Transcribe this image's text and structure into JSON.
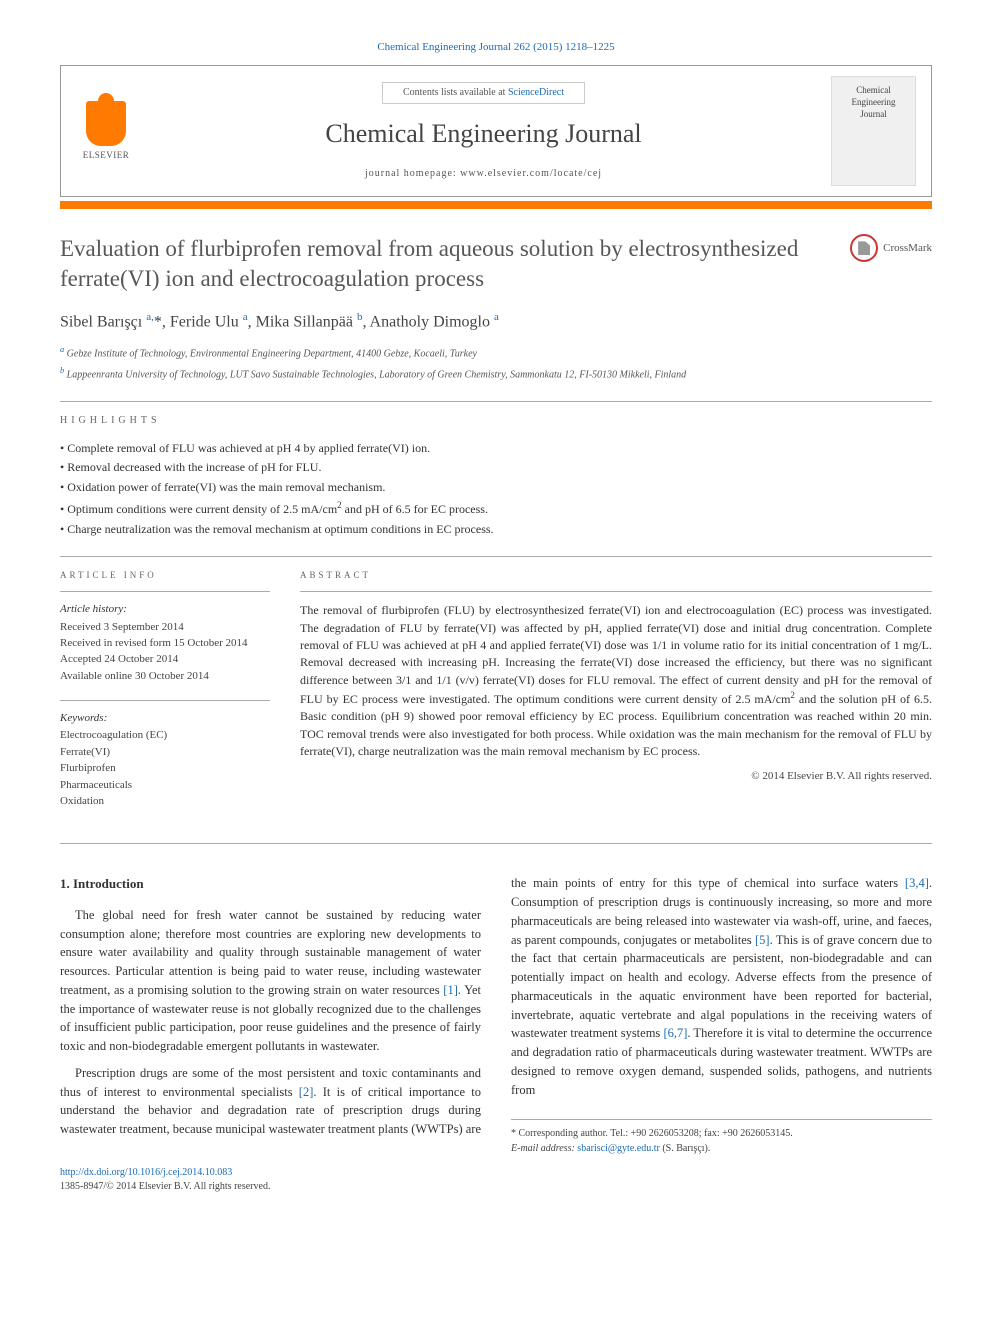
{
  "header": {
    "citation": "Chemical Engineering Journal 262 (2015) 1218–1225",
    "contents_prefix": "Contents lists available at ",
    "contents_link": "ScienceDirect",
    "journal_name": "Chemical Engineering Journal",
    "homepage_prefix": "journal homepage: ",
    "homepage_url": "www.elsevier.com/locate/cej",
    "publisher": "ELSEVIER",
    "cover_line1": "Chemical",
    "cover_line2": "Engineering",
    "cover_line3": "Journal",
    "crossmark": "CrossMark"
  },
  "article": {
    "title": "Evaluation of flurbiprofen removal from aqueous solution by electrosynthesized ferrate(VI) ion and electrocoagulation process",
    "authors_html": "Sibel Barışçı <sup>a,</sup>*, Feride Ulu <sup>a</sup>, Mika Sillanpää <sup>b</sup>, Anatholy Dimoglo <sup>a</sup>",
    "affiliations": [
      {
        "sup": "a",
        "text": "Gebze Institute of Technology, Environmental Engineering Department, 41400 Gebze, Kocaeli, Turkey"
      },
      {
        "sup": "b",
        "text": "Lappeenranta University of Technology, LUT Savo Sustainable Technologies, Laboratory of Green Chemistry, Sammonkatu 12, FI-50130 Mikkeli, Finland"
      }
    ]
  },
  "highlights": {
    "heading": "HIGHLIGHTS",
    "items": [
      "Complete removal of FLU was achieved at pH 4 by applied ferrate(VI) ion.",
      "Removal decreased with the increase of pH for FLU.",
      "Oxidation power of ferrate(VI) was the main removal mechanism.",
      "Optimum conditions were current density of 2.5 mA/cm<sup>2</sup> and pH of 6.5 for EC process.",
      "Charge neutralization was the removal mechanism at optimum conditions in EC process."
    ]
  },
  "info": {
    "heading": "ARTICLE INFO",
    "history_heading": "Article history:",
    "history": [
      "Received 3 September 2014",
      "Received in revised form 15 October 2014",
      "Accepted 24 October 2014",
      "Available online 30 October 2014"
    ],
    "keywords_heading": "Keywords:",
    "keywords": [
      "Electrocoagulation (EC)",
      "Ferrate(VI)",
      "Flurbiprofen",
      "Pharmaceuticals",
      "Oxidation"
    ]
  },
  "abstract": {
    "heading": "ABSTRACT",
    "text": "The removal of flurbiprofen (FLU) by electrosynthesized ferrate(VI) ion and electrocoagulation (EC) process was investigated. The degradation of FLU by ferrate(VI) was affected by pH, applied ferrate(VI) dose and initial drug concentration. Complete removal of FLU was achieved at pH 4 and applied ferrate(VI) dose was 1/1 in volume ratio for its initial concentration of 1 mg/L. Removal decreased with increasing pH. Increasing the ferrate(VI) dose increased the efficiency, but there was no significant difference between 3/1 and 1/1 (v/v) ferrate(VI) doses for FLU removal. The effect of current density and pH for the removal of FLU by EC process were investigated. The optimum conditions were current density of 2.5 mA/cm<sup>2</sup> and the solution pH of 6.5. Basic condition (pH 9) showed poor removal efficiency by EC process. Equilibrium concentration was reached within 20 min. TOC removal trends were also investigated for both process. While oxidation was the main mechanism for the removal of FLU by ferrate(VI), charge neutralization was the main removal mechanism by EC process.",
    "copyright": "© 2014 Elsevier B.V. All rights reserved."
  },
  "body": {
    "heading": "1. Introduction",
    "paragraphs": [
      "The global need for fresh water cannot be sustained by reducing water consumption alone; therefore most countries are exploring new developments to ensure water availability and quality through sustainable management of water resources. Particular attention is being paid to water reuse, including wastewater treatment, as a promising solution to the growing strain on water resources <span class=\"ref\">[1]</span>. Yet the importance of wastewater reuse is not globally recognized due to the challenges of insufficient public participation, poor reuse guidelines and the presence of fairly toxic and non-biodegradable emergent pollutants in wastewater.",
      "Prescription drugs are some of the most persistent and toxic contaminants and thus of interest to environmental specialists <span class=\"ref\">[2]</span>. It is of critical importance to understand the behavior and degradation rate of prescription drugs during wastewater treatment, because municipal wastewater treatment plants (WWTPs) are the main points of entry for this type of chemical into surface waters <span class=\"ref\">[3,4]</span>. Consumption of prescription drugs is continuously increasing, so more and more pharmaceuticals are being released into wastewater via wash-off, urine, and faeces, as parent compounds, conjugates or metabolites <span class=\"ref\">[5]</span>. This is of grave concern due to the fact that certain pharmaceuticals are persistent, non-biodegradable and can potentially impact on health and ecology. Adverse effects from the presence of pharmaceuticals in the aquatic environment have been reported for bacterial, invertebrate, aquatic vertebrate and algal populations in the receiving waters of wastewater treatment systems <span class=\"ref\">[6,7]</span>. Therefore it is vital to determine the occurrence and degradation ratio of pharmaceuticals during wastewater treatment. WWTPs are designed to remove oxygen demand, suspended solids, pathogens, and nutrients from"
    ]
  },
  "footnote": {
    "corresponding": "* Corresponding author. Tel.: +90 2626053208; fax: +90 2626053145.",
    "email_label": "E-mail address:",
    "email": "sbarisci@gyte.edu.tr",
    "email_suffix": "(S. Barışçı).",
    "doi": "http://dx.doi.org/10.1016/j.cej.2014.10.083",
    "issn": "1385-8947/© 2014 Elsevier B.V. All rights reserved."
  },
  "colors": {
    "accent": "#ff7a00",
    "link": "#1a6bb3",
    "text": "#333333",
    "muted": "#555555",
    "border": "#aaaaaa"
  }
}
